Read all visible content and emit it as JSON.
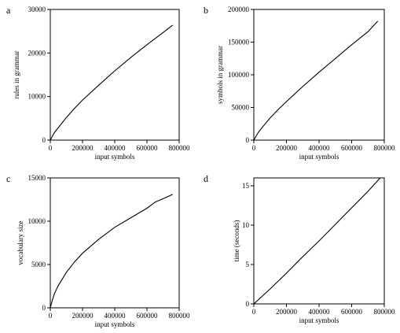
{
  "chart_data": [
    {
      "panel": "a",
      "type": "line",
      "xlabel": "input symbols",
      "ylabel": "rules in grammar",
      "xlim": [
        0,
        800000
      ],
      "ylim": [
        0,
        30000
      ],
      "xticks": [
        0,
        200000,
        400000,
        600000,
        800000
      ],
      "yticks": [
        0,
        10000,
        20000,
        30000
      ],
      "grid": false,
      "series": [
        {
          "x": [
            0,
            25000,
            50000,
            100000,
            150000,
            200000,
            300000,
            400000,
            500000,
            600000,
            700000,
            760000
          ],
          "values": [
            0,
            1700,
            2900,
            5200,
            7300,
            9200,
            12600,
            15900,
            19000,
            21900,
            24700,
            26400
          ]
        }
      ]
    },
    {
      "panel": "b",
      "type": "line",
      "xlabel": "input symbols",
      "ylabel": "symbols in grammar",
      "xlim": [
        0,
        800000
      ],
      "ylim": [
        0,
        200000
      ],
      "xticks": [
        0,
        200000,
        400000,
        600000,
        800000
      ],
      "yticks": [
        0,
        50000,
        100000,
        150000,
        200000
      ],
      "grid": false,
      "series": [
        {
          "x": [
            0,
            25000,
            50000,
            100000,
            150000,
            200000,
            300000,
            400000,
            500000,
            600000,
            700000,
            760000
          ],
          "values": [
            0,
            11000,
            19000,
            34000,
            47000,
            59000,
            82000,
            104000,
            125000,
            146000,
            166000,
            182000
          ]
        }
      ]
    },
    {
      "panel": "c",
      "type": "line",
      "xlabel": "input symbols",
      "ylabel": "vocabulary size",
      "xlim": [
        0,
        800000
      ],
      "ylim": [
        0,
        15000
      ],
      "xticks": [
        0,
        200000,
        400000,
        600000,
        800000
      ],
      "yticks": [
        0,
        5000,
        10000,
        15000
      ],
      "grid": false,
      "series": [
        {
          "x": [
            0,
            10000,
            25000,
            50000,
            100000,
            150000,
            200000,
            300000,
            400000,
            500000,
            600000,
            650000,
            700000,
            760000
          ],
          "values": [
            0,
            700,
            1600,
            2600,
            4100,
            5300,
            6300,
            7900,
            9300,
            10400,
            11500,
            12200,
            12600,
            13100
          ]
        }
      ]
    },
    {
      "panel": "d",
      "type": "line",
      "xlabel": "input symbols",
      "ylabel": "time (seconds)",
      "xlim": [
        0,
        800000
      ],
      "ylim": [
        0,
        16
      ],
      "xticks": [
        0,
        200000,
        400000,
        600000,
        800000
      ],
      "yticks": [
        0,
        5,
        10,
        15
      ],
      "grid": false,
      "series": [
        {
          "x": [
            0,
            100000,
            200000,
            300000,
            400000,
            500000,
            600000,
            700000,
            775000
          ],
          "values": [
            0,
            1.9,
            3.9,
            6.0,
            8.0,
            10.1,
            12.2,
            14.3,
            16.0
          ]
        }
      ]
    }
  ]
}
